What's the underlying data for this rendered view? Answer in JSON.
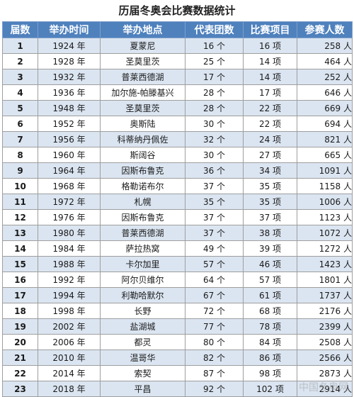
{
  "title": "历届冬奥会比赛数据统计",
  "headers": [
    "届数",
    "举办时间",
    "举办地点",
    "代表团数",
    "比赛项目",
    "参赛人数"
  ],
  "rows": [
    {
      "num": "1",
      "year": "1924 年",
      "location": "夏蒙尼",
      "delegations": "16 个",
      "events": "16 项",
      "athletes": "258 人"
    },
    {
      "num": "2",
      "year": "1928 年",
      "location": "圣莫里茨",
      "delegations": "25 个",
      "events": "14 项",
      "athletes": "464 人"
    },
    {
      "num": "3",
      "year": "1932 年",
      "location": "普莱西德湖",
      "delegations": "17 个",
      "events": "14 项",
      "athletes": "252 人"
    },
    {
      "num": "4",
      "year": "1936 年",
      "location": "加尔施-帕滕基兴",
      "delegations": "28 个",
      "events": "17 项",
      "athletes": "646 人"
    },
    {
      "num": "5",
      "year": "1948 年",
      "location": "圣莫里茨",
      "delegations": "28 个",
      "events": "22 项",
      "athletes": "669 人"
    },
    {
      "num": "6",
      "year": "1952 年",
      "location": "奥斯陆",
      "delegations": "30 个",
      "events": "22 项",
      "athletes": "694 人"
    },
    {
      "num": "7",
      "year": "1956 年",
      "location": "科蒂纳丹佩佐",
      "delegations": "32 个",
      "events": "24 项",
      "athletes": "821 人"
    },
    {
      "num": "8",
      "year": "1960 年",
      "location": "斯阔谷",
      "delegations": "30 个",
      "events": "27 项",
      "athletes": "665 人"
    },
    {
      "num": "9",
      "year": "1964 年",
      "location": "因斯布鲁克",
      "delegations": "36 个",
      "events": "34 项",
      "athletes": "1091 人"
    },
    {
      "num": "10",
      "year": "1968 年",
      "location": "格勒诺布尔",
      "delegations": "37 个",
      "events": "35 项",
      "athletes": "1158 人"
    },
    {
      "num": "11",
      "year": "1972 年",
      "location": "札幌",
      "delegations": "35 个",
      "events": "35 项",
      "athletes": "1006 人"
    },
    {
      "num": "12",
      "year": "1976 年",
      "location": "因斯布鲁克",
      "delegations": "37 个",
      "events": "37 项",
      "athletes": "1123 人"
    },
    {
      "num": "13",
      "year": "1980 年",
      "location": "普莱西德湖",
      "delegations": "37 个",
      "events": "38 项",
      "athletes": "1072 人"
    },
    {
      "num": "14",
      "year": "1984 年",
      "location": "萨拉热窝",
      "delegations": "49 个",
      "events": "39 项",
      "athletes": "1272 人"
    },
    {
      "num": "15",
      "year": "1988 年",
      "location": "卡尔加里",
      "delegations": "57 个",
      "events": "46 项",
      "athletes": "1423 人"
    },
    {
      "num": "16",
      "year": "1992 年",
      "location": "阿尔贝维尔",
      "delegations": "64 个",
      "events": "57 项",
      "athletes": "1801 人"
    },
    {
      "num": "17",
      "year": "1994 年",
      "location": "利勒哈默尔",
      "delegations": "67 个",
      "events": "61 项",
      "athletes": "1737 人"
    },
    {
      "num": "18",
      "year": "1998 年",
      "location": "长野",
      "delegations": "72 个",
      "events": "68 项",
      "athletes": "2176 人"
    },
    {
      "num": "19",
      "year": "2002 年",
      "location": "盐湖城",
      "delegations": "77 个",
      "events": "78 项",
      "athletes": "2399 人"
    },
    {
      "num": "20",
      "year": "2006 年",
      "location": "都灵",
      "delegations": "80 个",
      "events": "84 项",
      "athletes": "2508 人"
    },
    {
      "num": "21",
      "year": "2010 年",
      "location": "温哥华",
      "delegations": "82 个",
      "events": "86 项",
      "athletes": "2566 人"
    },
    {
      "num": "22",
      "year": "2014 年",
      "location": "索契",
      "delegations": "87 个",
      "events": "98 项",
      "athletes": "2873 人"
    },
    {
      "num": "23",
      "year": "2018 年",
      "location": "平昌",
      "delegations": "92 个",
      "events": "102 项",
      "athletes": "2914 人"
    }
  ],
  "watermark": "中国冬奥网"
}
